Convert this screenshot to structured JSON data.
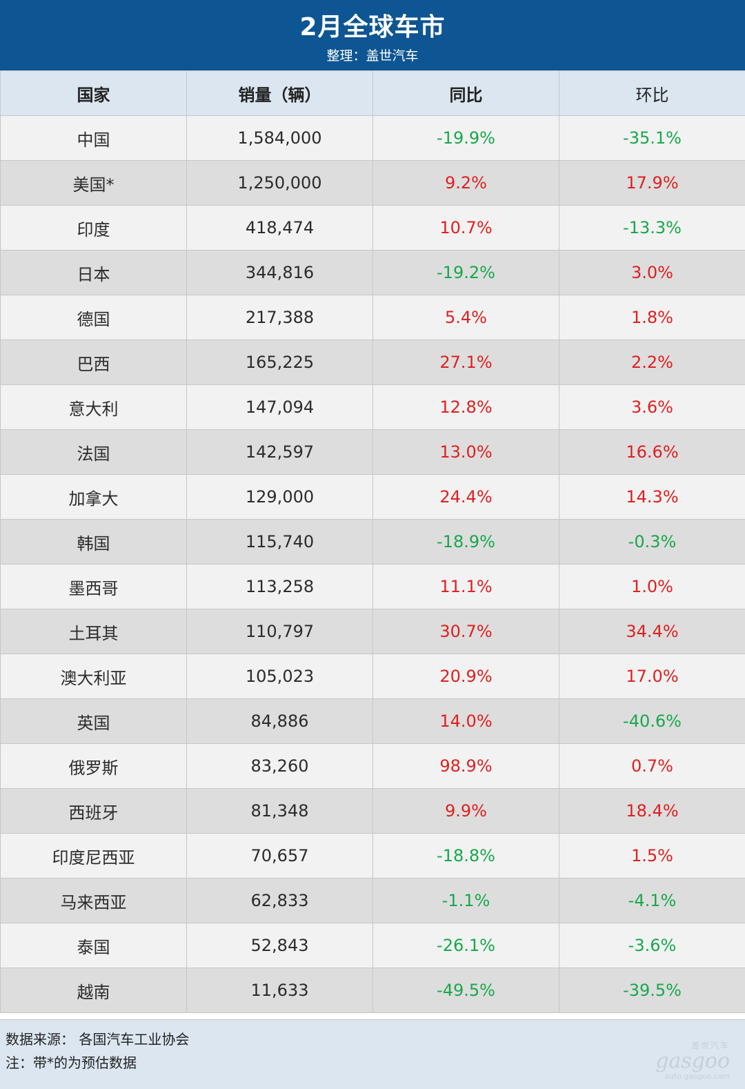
{
  "header": {
    "title": "2月全球车市",
    "subtitle": "整理：盖世汽车"
  },
  "table": {
    "columns": [
      "国家",
      "销量（辆）",
      "同比",
      "环比"
    ],
    "rows": [
      {
        "country": "中国",
        "sales": "1,584,000",
        "yoy": "-19.9%",
        "mom": "-35.1%"
      },
      {
        "country": "美国*",
        "sales": "1,250,000",
        "yoy": "9.2%",
        "mom": "17.9%"
      },
      {
        "country": "印度",
        "sales": "418,474",
        "yoy": "10.7%",
        "mom": "-13.3%"
      },
      {
        "country": "日本",
        "sales": "344,816",
        "yoy": "-19.2%",
        "mom": "3.0%"
      },
      {
        "country": "德国",
        "sales": "217,388",
        "yoy": "5.4%",
        "mom": "1.8%"
      },
      {
        "country": "巴西",
        "sales": "165,225",
        "yoy": "27.1%",
        "mom": "2.2%"
      },
      {
        "country": "意大利",
        "sales": "147,094",
        "yoy": "12.8%",
        "mom": "3.6%"
      },
      {
        "country": "法国",
        "sales": "142,597",
        "yoy": "13.0%",
        "mom": "16.6%"
      },
      {
        "country": "加拿大",
        "sales": "129,000",
        "yoy": "24.4%",
        "mom": "14.3%"
      },
      {
        "country": "韩国",
        "sales": "115,740",
        "yoy": "-18.9%",
        "mom": "-0.3%"
      },
      {
        "country": "墨西哥",
        "sales": "113,258",
        "yoy": "11.1%",
        "mom": "1.0%"
      },
      {
        "country": "土耳其",
        "sales": "110,797",
        "yoy": "30.7%",
        "mom": "34.4%"
      },
      {
        "country": "澳大利亚",
        "sales": "105,023",
        "yoy": "20.9%",
        "mom": "17.0%"
      },
      {
        "country": "英国",
        "sales": "84,886",
        "yoy": "14.0%",
        "mom": "-40.6%"
      },
      {
        "country": "俄罗斯",
        "sales": "83,260",
        "yoy": "98.9%",
        "mom": "0.7%"
      },
      {
        "country": "西班牙",
        "sales": "81,348",
        "yoy": "9.9%",
        "mom": "18.4%"
      },
      {
        "country": "印度尼西亚",
        "sales": "70,657",
        "yoy": "-18.8%",
        "mom": "1.5%"
      },
      {
        "country": "马来西亚",
        "sales": "62,833",
        "yoy": "-1.1%",
        "mom": "-4.1%"
      },
      {
        "country": "泰国",
        "sales": "52,843",
        "yoy": "-26.1%",
        "mom": "-3.6%"
      },
      {
        "country": "越南",
        "sales": "11,633",
        "yoy": "-49.5%",
        "mom": "-39.5%"
      }
    ]
  },
  "footer": {
    "source": "数据来源： 各国汽车工业协会",
    "note": "注：带*的为预估数据"
  },
  "watermark": {
    "brand": "盖世汽车",
    "logo": "gasgoo",
    "url": "auto.gasgoo.com"
  },
  "colors": {
    "header_bg": "#0d5593",
    "column_header_bg": "#dbe6f1",
    "negative": "#17a84a",
    "positive": "#e01f1f"
  }
}
